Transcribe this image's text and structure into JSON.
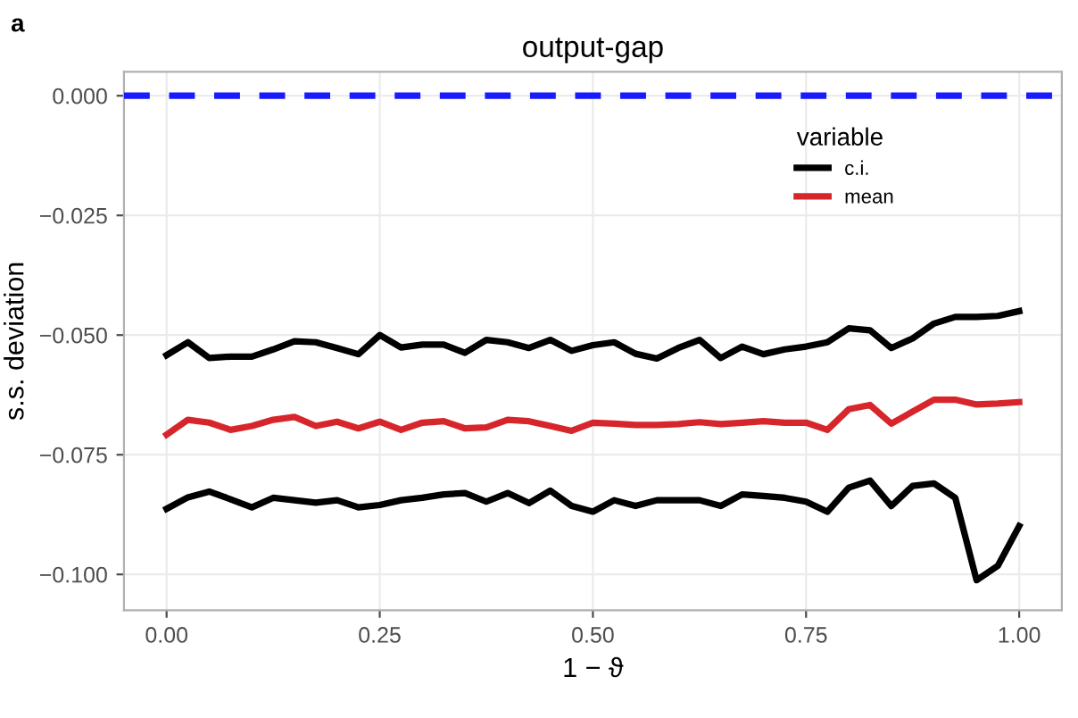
{
  "chart_data": {
    "type": "line",
    "title": "output-gap",
    "xlabel": "1 − ϑ",
    "ylabel": "s.s. deviation",
    "legend_title": "variable",
    "annotations": [
      "a"
    ],
    "x": [
      0,
      0.025,
      0.05,
      0.075,
      0.1,
      0.125,
      0.15,
      0.175,
      0.2,
      0.225,
      0.25,
      0.275,
      0.3,
      0.325,
      0.35,
      0.375,
      0.4,
      0.425,
      0.45,
      0.475,
      0.5,
      0.525,
      0.55,
      0.575,
      0.6,
      0.625,
      0.65,
      0.675,
      0.7,
      0.725,
      0.75,
      0.775,
      0.8,
      0.825,
      0.85,
      0.875,
      0.9,
      0.925,
      0.95,
      0.975,
      1.0
    ],
    "series": [
      {
        "name": "c.i.",
        "color": "#000000",
        "values": [
          -0.0542,
          -0.0515,
          -0.0548,
          -0.0545,
          -0.0545,
          -0.053,
          -0.0513,
          -0.0515,
          -0.0527,
          -0.054,
          -0.05,
          -0.0526,
          -0.052,
          -0.052,
          -0.0537,
          -0.051,
          -0.0515,
          -0.0527,
          -0.051,
          -0.0533,
          -0.0521,
          -0.0515,
          -0.0539,
          -0.0549,
          -0.0527,
          -0.051,
          -0.0548,
          -0.0524,
          -0.054,
          -0.053,
          -0.0524,
          -0.0515,
          -0.0486,
          -0.049,
          -0.0527,
          -0.0507,
          -0.0476,
          -0.0462,
          -0.0462,
          -0.046,
          -0.045
        ]
      },
      {
        "name": "mean",
        "color": "#d7262b",
        "values": [
          -0.0708,
          -0.0677,
          -0.0683,
          -0.0698,
          -0.069,
          -0.0677,
          -0.0671,
          -0.069,
          -0.0681,
          -0.0695,
          -0.0681,
          -0.0698,
          -0.0683,
          -0.068,
          -0.0695,
          -0.0693,
          -0.0677,
          -0.068,
          -0.069,
          -0.07,
          -0.0683,
          -0.0685,
          -0.0688,
          -0.0688,
          -0.0686,
          -0.0682,
          -0.0686,
          -0.0683,
          -0.068,
          -0.0683,
          -0.0683,
          -0.0698,
          -0.0655,
          -0.0646,
          -0.0685,
          -0.066,
          -0.0635,
          -0.0635,
          -0.0645,
          -0.0643,
          -0.064
        ]
      },
      {
        "color": "#000000",
        "values": [
          -0.0863,
          -0.0839,
          -0.0827,
          -0.0843,
          -0.086,
          -0.084,
          -0.0845,
          -0.085,
          -0.0845,
          -0.086,
          -0.0855,
          -0.0845,
          -0.084,
          -0.0833,
          -0.083,
          -0.0848,
          -0.083,
          -0.0851,
          -0.0825,
          -0.0857,
          -0.0869,
          -0.0845,
          -0.0857,
          -0.0845,
          -0.0845,
          -0.0845,
          -0.0857,
          -0.0833,
          -0.0836,
          -0.084,
          -0.0848,
          -0.0869,
          -0.0819,
          -0.0804,
          -0.0857,
          -0.0815,
          -0.081,
          -0.084,
          -0.1012,
          -0.0982,
          -0.0899
        ]
      }
    ],
    "xlim": [
      -0.05,
      1.05
    ],
    "xticks": [
      {
        "value": 0,
        "label": "0.00"
      },
      {
        "value": 0.25,
        "label": "0.25"
      },
      {
        "value": 0.5,
        "label": "0.50"
      },
      {
        "value": 0.75,
        "label": "0.75"
      },
      {
        "value": 1.0,
        "label": "1.00"
      }
    ],
    "ylim": [
      -0.1075,
      0.005
    ],
    "yticks": [
      {
        "value": -0.1,
        "label": "−0.100"
      },
      {
        "value": -0.075,
        "label": "−0.075"
      },
      {
        "value": -0.05,
        "label": "−0.050"
      },
      {
        "value": -0.025,
        "label": "−0.025"
      },
      {
        "value": 0,
        "label": "0.000"
      }
    ],
    "ref_lines": [
      {
        "axis": "y",
        "value": 0,
        "color": "#1a1aff",
        "line_style": "dashed"
      }
    ],
    "grid": true,
    "legend": "top right",
    "line_style": "solid",
    "marker": "none"
  }
}
